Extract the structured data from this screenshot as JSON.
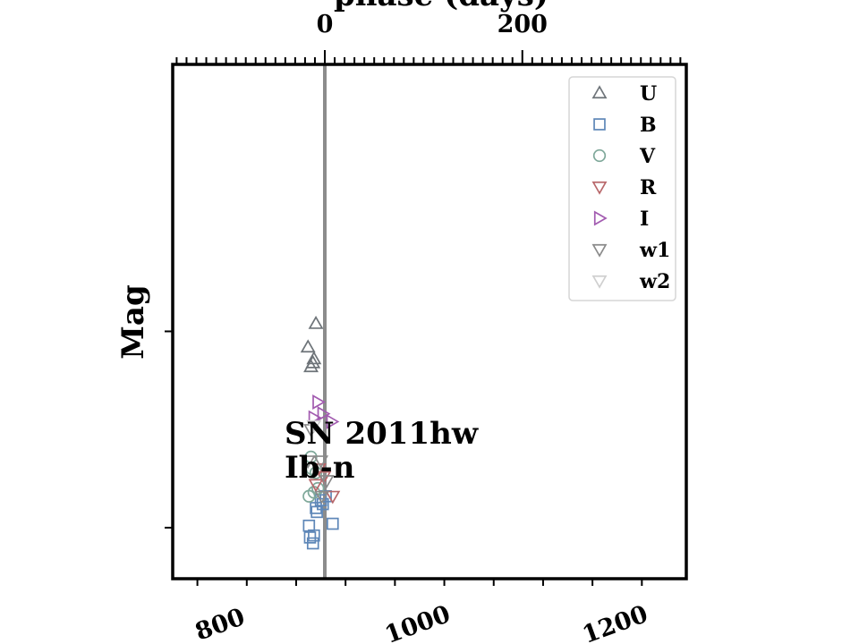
{
  "chart_data": {
    "type": "scatter",
    "title": "",
    "ylabel": "Mag",
    "xlabel": "",
    "top_xlabel": "phase (days)",
    "xlim": [
      750,
      1270
    ],
    "x_ticks": [
      800,
      1000,
      1200
    ],
    "top_ticks": [
      0,
      200
    ],
    "top_offset": 904,
    "ylim": [
      21.3,
      8.2
    ],
    "y_inverted": true,
    "vertical_line_x": 904,
    "annotation": {
      "name": "SN 2011hw",
      "type": "Ib-n"
    },
    "legend_position": "top-right",
    "series": [
      {
        "name": "U",
        "marker": "triangle-up",
        "color": "#6e7479",
        "points": [
          [
            895,
            14.8
          ],
          [
            887,
            15.4
          ],
          [
            893,
            15.7
          ],
          [
            890,
            15.9
          ],
          [
            892,
            15.8
          ]
        ]
      },
      {
        "name": "B",
        "marker": "square",
        "color": "#5e87b8",
        "points": [
          [
            895,
            19.5
          ],
          [
            900,
            19.3
          ],
          [
            905,
            19.2
          ],
          [
            912,
            19.9
          ],
          [
            888,
            19.95
          ],
          [
            893,
            20.2
          ],
          [
            889,
            20.25
          ],
          [
            892,
            20.4
          ],
          [
            896,
            19.6
          ],
          [
            902,
            19.4
          ]
        ]
      },
      {
        "name": "V",
        "marker": "circle",
        "color": "#7fa89a",
        "points": [
          [
            890,
            18.2
          ],
          [
            895,
            18.6
          ],
          [
            888,
            19.2
          ],
          [
            893,
            19.1
          ],
          [
            897,
            19.0
          ],
          [
            891,
            18.5
          ]
        ]
      },
      {
        "name": "R",
        "marker": "triangle-down",
        "color": "#b8676a",
        "points": [
          [
            898,
            18.5
          ],
          [
            903,
            18.7
          ],
          [
            912,
            19.2
          ],
          [
            895,
            18.9
          ]
        ]
      },
      {
        "name": "I",
        "marker": "triangle-right",
        "color": "#a25bb0",
        "points": [
          [
            897,
            16.8
          ],
          [
            893,
            17.2
          ],
          [
            911,
            17.3
          ],
          [
            902,
            17.1
          ]
        ]
      },
      {
        "name": "w1",
        "marker": "triangle-down",
        "color": "#8a8a8a",
        "points": [
          [
            890,
            17.5
          ],
          [
            900,
            18.3
          ],
          [
            887,
            18.3
          ],
          [
            906,
            18.8
          ],
          [
            901,
            19.2
          ]
        ]
      },
      {
        "name": "w2",
        "marker": "triangle-down",
        "color": "#cfcfcf",
        "points": [
          [
            893,
            17.4
          ]
        ]
      }
    ]
  }
}
